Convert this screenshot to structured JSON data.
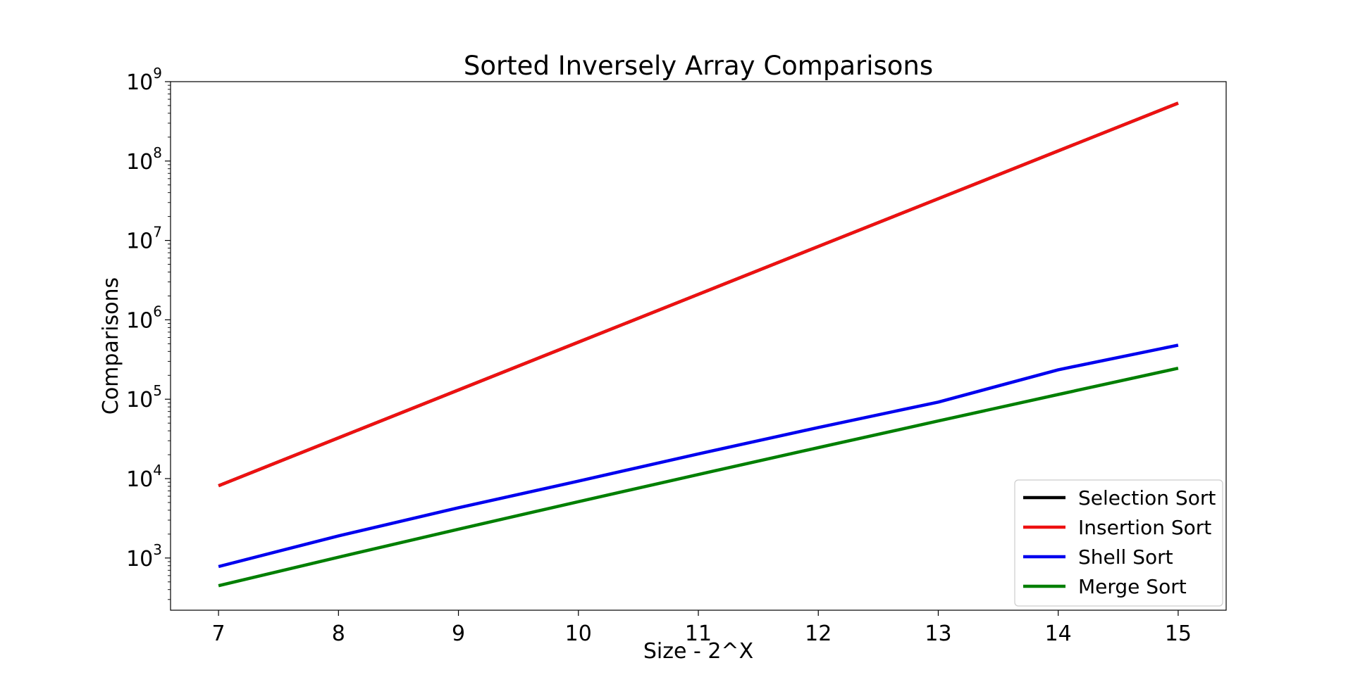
{
  "chart_data": {
    "type": "line",
    "title": "Sorted Inversely Array Comparisons",
    "xlabel": "Size - 2^X",
    "ylabel": "Comparisons",
    "yscale": "log",
    "ylim": [
      220,
      1000000000
    ],
    "xlim": [
      6.6,
      15.4
    ],
    "x": [
      7,
      8,
      9,
      10,
      11,
      12,
      13,
      14,
      15
    ],
    "x_ticks": [
      "7",
      "8",
      "9",
      "10",
      "11",
      "12",
      "13",
      "14",
      "15"
    ],
    "y_ticks": [
      {
        "base": "10",
        "exp": "3",
        "value": 1000
      },
      {
        "base": "10",
        "exp": "4",
        "value": 10000
      },
      {
        "base": "10",
        "exp": "5",
        "value": 100000
      },
      {
        "base": "10",
        "exp": "6",
        "value": 1000000
      },
      {
        "base": "10",
        "exp": "7",
        "value": 10000000
      },
      {
        "base": "10",
        "exp": "8",
        "value": 100000000
      },
      {
        "base": "10",
        "exp": "9",
        "value": 1000000000
      }
    ],
    "grid": false,
    "legend_position": "bottom-right",
    "series": [
      {
        "name": "Selection Sort",
        "color": "#000000",
        "values": [
          8128,
          32640,
          130816,
          523776,
          2096128,
          8386560,
          33550336,
          134209536,
          536854528
        ]
      },
      {
        "name": "Insertion Sort",
        "color": "#ee1111",
        "values": [
          8128,
          32640,
          130816,
          523776,
          2096128,
          8386560,
          33550336,
          134209536,
          536854528
        ]
      },
      {
        "name": "Shell Sort",
        "color": "#0000ee",
        "values": [
          780,
          1900,
          4300,
          9300,
          20500,
          44000,
          92000,
          235000,
          480000
        ]
      },
      {
        "name": "Merge Sort",
        "color": "#007f00",
        "values": [
          448,
          1024,
          2304,
          5120,
          11264,
          24576,
          53248,
          114688,
          245760
        ]
      }
    ]
  }
}
